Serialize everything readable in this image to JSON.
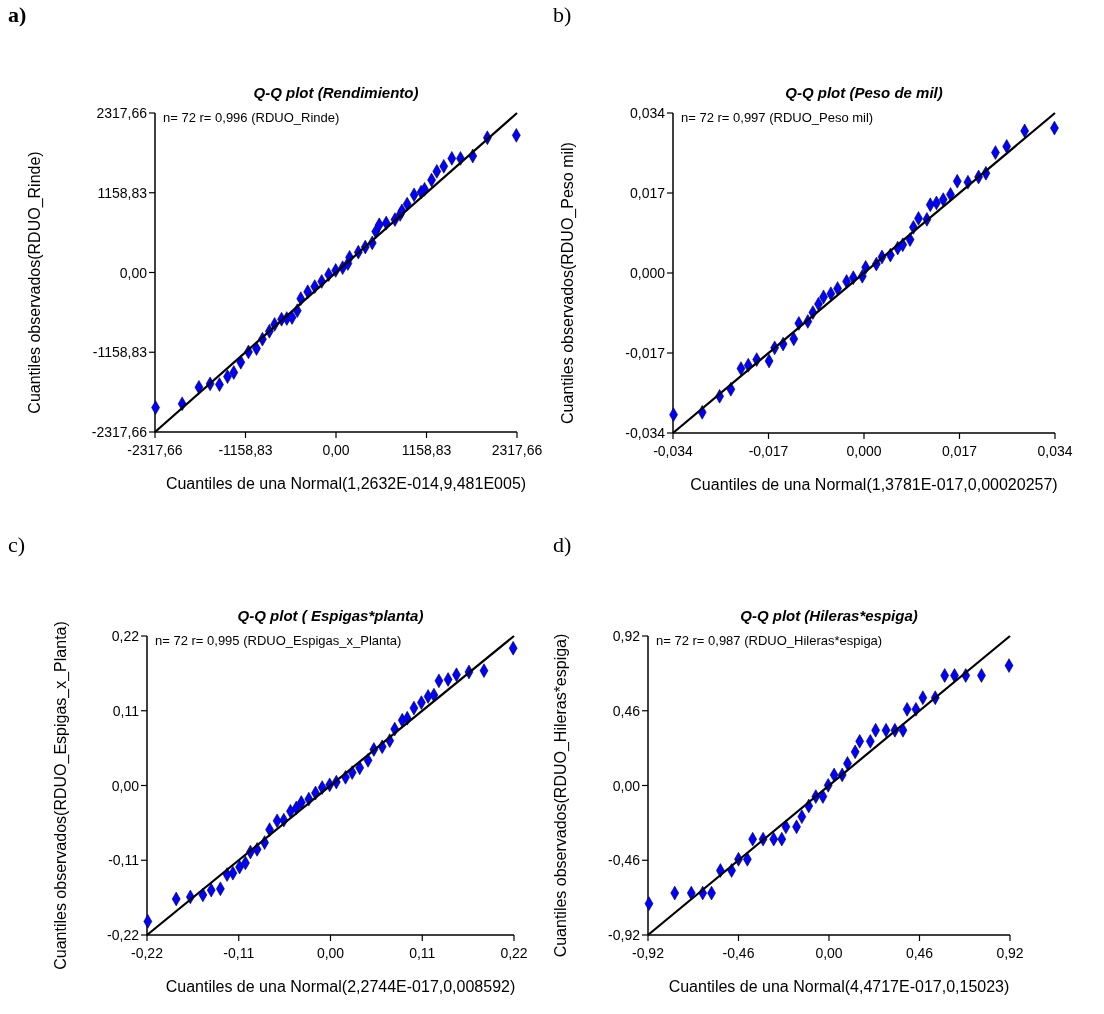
{
  "chart_data": [
    {
      "type": "scatter",
      "title": "Q-Q plot (Rendimiento)",
      "xlabel": "Cuantiles de una Normal(1,2632E-014,9,481E005)",
      "ylabel": "Cuantiles observados(RDUO_Rinde)",
      "annotations": [
        "a)",
        "n= 72 r= 0,996 (RDUO_Rinde)"
      ],
      "xlim": [
        -2317.66,
        2317.66
      ],
      "ylim": [
        -2317.66,
        2317.66
      ],
      "xticks": [
        {
          "value": -2317.66,
          "label": "-2317,66"
        },
        {
          "value": -1158.83,
          "label": "-1158,83"
        },
        {
          "value": 0,
          "label": "0,00"
        },
        {
          "value": 1158.83,
          "label": "1158,83"
        },
        {
          "value": 2317.66,
          "label": "2317,66"
        }
      ],
      "yticks": [
        {
          "value": -2317.66,
          "label": "-2317,66"
        },
        {
          "value": -1158.83,
          "label": "-1158,83"
        },
        {
          "value": 0,
          "label": "0,00"
        },
        {
          "value": 1158.83,
          "label": "1158,83"
        },
        {
          "value": 2317.66,
          "label": "2317,66"
        }
      ],
      "series": [
        {
          "type": "scatter",
          "color": "#0000ff",
          "marker": "diamond",
          "x": [
            -2310,
            -1970,
            -1755,
            -1612,
            -1492,
            -1389,
            -1309,
            -1219,
            -1121,
            -1018,
            -942,
            -853,
            -786,
            -697,
            -630,
            -563,
            -496,
            -451,
            -362,
            -272,
            -183,
            -94,
            -4,
            85,
            152,
            174,
            286,
            375,
            464,
            509,
            554,
            643,
            755,
            822,
            844,
            911,
            1000,
            1090,
            1134,
            1224,
            1291,
            1380,
            1483,
            1594,
            1751,
            1938,
            2309
          ],
          "values": [
            -1963,
            -1908,
            -1668,
            -1618,
            -1628,
            -1513,
            -1453,
            -1304,
            -1154,
            -1104,
            -969,
            -854,
            -754,
            -679,
            -669,
            -654,
            -554,
            -380,
            -280,
            -205,
            -130,
            -30,
            30,
            70,
            130,
            220,
            295,
            370,
            430,
            594,
            694,
            719,
            769,
            844,
            894,
            994,
            1129,
            1169,
            1209,
            1344,
            1469,
            1543,
            1658,
            1658,
            1693,
            1958,
            1993
          ]
        },
        {
          "type": "line",
          "color": "#000000",
          "x": [
            -2317.66,
            2317.66
          ],
          "values": [
            -2317.66,
            2317.66
          ]
        }
      ]
    },
    {
      "type": "scatter",
      "title": "Q-Q plot (Peso de mil)",
      "xlabel": "Cuantiles de una Normal(1,3781E-017,0,00020257)",
      "ylabel": "Cuantiles observados(RDUO_Peso mil)",
      "annotations": [
        "b)",
        "n= 72 r= 0,997 (RDUO_Peso mil)"
      ],
      "xlim": [
        -0.034,
        0.034
      ],
      "ylim": [
        -0.034,
        0.034
      ],
      "xticks": [
        {
          "value": -0.034,
          "label": "-0,034"
        },
        {
          "value": -0.017,
          "label": "-0,017"
        },
        {
          "value": 0,
          "label": "0,000"
        },
        {
          "value": 0.017,
          "label": "0,017"
        },
        {
          "value": 0.034,
          "label": "0,034"
        }
      ],
      "yticks": [
        {
          "value": -0.034,
          "label": "-0,034"
        },
        {
          "value": -0.017,
          "label": "-0,017"
        },
        {
          "value": 0,
          "label": "0,000"
        },
        {
          "value": 0.017,
          "label": "0,017"
        },
        {
          "value": 0.034,
          "label": "0,034"
        }
      ],
      "series": [
        {
          "type": "scatter",
          "color": "#0000ff",
          "marker": "diamond",
          "x": [
            -0.0339,
            -0.0288,
            -0.0257,
            -0.0237,
            -0.0219,
            -0.0206,
            -0.0191,
            -0.0169,
            -0.0159,
            -0.0144,
            -0.0125,
            -0.0116,
            -0.01,
            -0.0091,
            -0.0081,
            -0.0072,
            -0.0059,
            -0.0047,
            -0.0031,
            -0.0019,
            -0.0003,
            0.0003,
            0.0022,
            0.0032,
            0.0047,
            0.006,
            0.0069,
            0.0082,
            0.0088,
            0.0097,
            0.0112,
            0.0118,
            0.0129,
            0.0141,
            0.0154,
            0.0166,
            0.0185,
            0.0204,
            0.0217,
            0.0234,
            0.0254,
            0.0286,
            0.0339
          ],
          "values": [
            -0.0301,
            -0.0296,
            -0.0262,
            -0.0247,
            -0.0203,
            -0.0196,
            -0.0184,
            -0.0187,
            -0.0159,
            -0.0151,
            -0.014,
            -0.0107,
            -0.0103,
            -0.0084,
            -0.0066,
            -0.0051,
            -0.0044,
            -0.0033,
            -0.0018,
            -0.001,
            -0.0007,
            0.0012,
            0.0019,
            0.0034,
            0.0038,
            0.0053,
            0.006,
            0.0071,
            0.0097,
            0.0116,
            0.0114,
            0.0145,
            0.0149,
            0.0156,
            0.0167,
            0.0195,
            0.0193,
            0.0204,
            0.0212,
            0.0256,
            0.0269,
            0.0302,
            0.0308
          ]
        },
        {
          "type": "line",
          "color": "#000000",
          "x": [
            -0.034,
            0.034
          ],
          "values": [
            -0.034,
            0.034
          ]
        }
      ]
    },
    {
      "type": "scatter",
      "title": "Q-Q plot ( Espigas*planta)",
      "xlabel": "Cuantiles de una Normal(2,2744E-017,0,008592)",
      "ylabel": "Cuantiles observados(RDUO_Espigas_x_Planta)",
      "annotations": [
        "c)",
        "n= 72 r= 0,995 (RDUO_Espigas_x_Planta)"
      ],
      "xlim": [
        -0.22,
        0.22
      ],
      "ylim": [
        -0.22,
        0.22
      ],
      "xticks": [
        {
          "value": -0.22,
          "label": "-0,22"
        },
        {
          "value": -0.11,
          "label": "-0,11"
        },
        {
          "value": 0,
          "label": "0,00"
        },
        {
          "value": 0.11,
          "label": "0,11"
        },
        {
          "value": 0.22,
          "label": "0,22"
        }
      ],
      "yticks": [
        {
          "value": -0.22,
          "label": "-0,22"
        },
        {
          "value": -0.11,
          "label": "-0,11"
        },
        {
          "value": 0,
          "label": "0,00"
        },
        {
          "value": 0.11,
          "label": "0,11"
        },
        {
          "value": 0.22,
          "label": "0,22"
        }
      ],
      "series": [
        {
          "type": "scatter",
          "color": "#0000ff",
          "marker": "diamond",
          "x": [
            -0.219,
            -0.185,
            -0.168,
            -0.153,
            -0.143,
            -0.132,
            -0.124,
            -0.117,
            -0.109,
            -0.102,
            -0.096,
            -0.088,
            -0.079,
            -0.073,
            -0.064,
            -0.056,
            -0.048,
            -0.041,
            -0.035,
            -0.026,
            -0.018,
            -0.01,
            -0.001,
            0.007,
            0.018,
            0.026,
            0.035,
            0.045,
            0.052,
            0.062,
            0.071,
            0.077,
            0.086,
            0.092,
            0.1,
            0.109,
            0.117,
            0.124,
            0.13,
            0.141,
            0.151,
            0.166,
            0.184,
            0.219
          ],
          "values": [
            -0.2,
            -0.167,
            -0.164,
            -0.161,
            -0.154,
            -0.152,
            -0.131,
            -0.129,
            -0.12,
            -0.114,
            -0.098,
            -0.094,
            -0.084,
            -0.065,
            -0.052,
            -0.051,
            -0.038,
            -0.033,
            -0.025,
            -0.02,
            -0.011,
            -0.003,
            0.001,
            0.005,
            0.012,
            0.019,
            0.026,
            0.037,
            0.053,
            0.057,
            0.066,
            0.083,
            0.096,
            0.099,
            0.114,
            0.122,
            0.131,
            0.133,
            0.154,
            0.156,
            0.163,
            0.167,
            0.169,
            0.202
          ]
        },
        {
          "type": "line",
          "color": "#000000",
          "x": [
            -0.22,
            0.22
          ],
          "values": [
            -0.22,
            0.22
          ]
        }
      ]
    },
    {
      "type": "scatter",
      "title": "Q-Q plot (Hileras*espiga)",
      "xlabel": "Cuantiles de una Normal(4,4717E-017,0,15023)",
      "ylabel": "Cuantiles observados(RDUO_Hileras*espiga)",
      "annotations": [
        "d)",
        "n= 72 r= 0,987 (RDUO_Hileras*espiga)"
      ],
      "xlim": [
        -0.92,
        0.92
      ],
      "ylim": [
        -0.92,
        0.92
      ],
      "xticks": [
        {
          "value": -0.92,
          "label": "-0,92"
        },
        {
          "value": -0.46,
          "label": "-0,46"
        },
        {
          "value": 0,
          "label": "0,00"
        },
        {
          "value": 0.46,
          "label": "0,46"
        },
        {
          "value": 0.92,
          "label": "0,92"
        }
      ],
      "yticks": [
        {
          "value": -0.92,
          "label": "-0,92"
        },
        {
          "value": -0.46,
          "label": "-0,46"
        },
        {
          "value": 0,
          "label": "0,00"
        },
        {
          "value": 0.46,
          "label": "0,46"
        },
        {
          "value": 0.92,
          "label": "0,92"
        }
      ],
      "series": [
        {
          "type": "scatter",
          "color": "#0000ff",
          "marker": "diamond",
          "x": [
            -0.915,
            -0.784,
            -0.7,
            -0.642,
            -0.597,
            -0.552,
            -0.495,
            -0.46,
            -0.415,
            -0.388,
            -0.335,
            -0.281,
            -0.24,
            -0.219,
            -0.165,
            -0.138,
            -0.103,
            -0.067,
            -0.031,
            -0.004,
            0.026,
            0.067,
            0.094,
            0.133,
            0.156,
            0.21,
            0.237,
            0.29,
            0.335,
            0.376,
            0.397,
            0.442,
            0.477,
            0.54,
            0.588,
            0.638,
            0.695,
            0.775,
            0.915
          ],
          "values": [
            -0.727,
            -0.662,
            -0.662,
            -0.662,
            -0.662,
            -0.523,
            -0.523,
            -0.454,
            -0.454,
            -0.33,
            -0.33,
            -0.33,
            -0.33,
            -0.254,
            -0.254,
            -0.192,
            -0.126,
            -0.068,
            -0.068,
            0.001,
            0.065,
            0.065,
            0.136,
            0.207,
            0.272,
            0.272,
            0.34,
            0.34,
            0.34,
            0.34,
            0.469,
            0.469,
            0.54,
            0.54,
            0.677,
            0.677,
            0.677,
            0.677,
            0.738
          ]
        },
        {
          "type": "line",
          "color": "#000000",
          "x": [
            -0.92,
            0.92
          ],
          "values": [
            -0.92,
            0.92
          ]
        }
      ]
    }
  ]
}
